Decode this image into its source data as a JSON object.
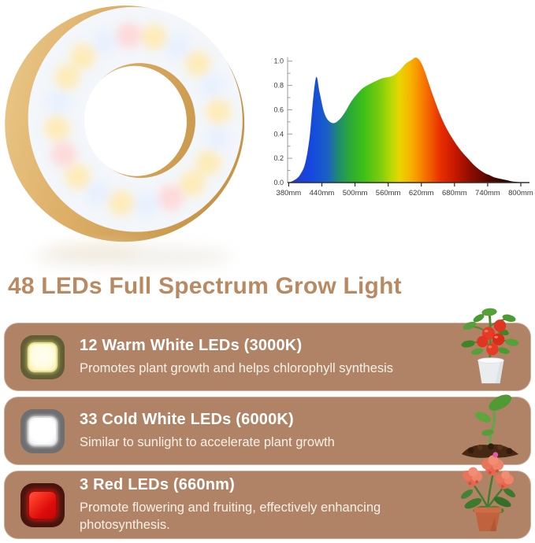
{
  "title": "48 LEDs Full Spectrum Grow Light",
  "title_color": "#b98a62",
  "card_color": "#b08366",
  "heading_color": "#ffffff",
  "description_color": "#f8f1e7",
  "ring_light": {
    "name": "wooden-ring-grow-light",
    "wood_color": "#ddaf67",
    "diffuser_color": "#f3f6fa",
    "led_glow_colors": {
      "warm": "#ffeab0",
      "cold": "#e8f1ff",
      "red": "#ffd6d6"
    }
  },
  "chart_data": {
    "type": "area",
    "title": "",
    "xlabel": "",
    "ylabel": "",
    "grid": false,
    "legend": false,
    "xlim": [
      378,
      810
    ],
    "ylim": [
      0,
      1.05
    ],
    "x_ticks": [
      "380mm",
      "440mm",
      "500mm",
      "560mm",
      "620mm",
      "680mm",
      "740mm",
      "800mm"
    ],
    "x_tick_values": [
      380,
      440,
      500,
      560,
      620,
      680,
      740,
      800
    ],
    "y_ticks": [
      "0.0",
      "0.2",
      "0.4",
      "0.6",
      "0.8",
      "1.0"
    ],
    "y_tick_values": [
      0,
      0.2,
      0.4,
      0.6,
      0.8,
      1.0
    ],
    "y_minor_ticks": [
      0.1,
      0.3,
      0.5,
      0.7,
      0.9
    ],
    "x_axis_color": "#2e2e2e",
    "y_axis_color": "#9b9b9b",
    "tick_label_color": "#3a3a3a",
    "x": [
      380,
      390,
      400,
      410,
      418,
      424,
      430,
      436,
      444,
      452,
      462,
      472,
      482,
      492,
      502,
      512,
      522,
      535,
      550,
      562,
      572,
      582,
      592,
      602,
      610,
      618,
      626,
      634,
      644,
      654,
      664,
      674,
      684,
      694,
      704,
      714,
      724,
      734,
      744,
      754,
      764,
      774,
      784,
      794,
      805
    ],
    "y": [
      0,
      0.02,
      0.06,
      0.16,
      0.38,
      0.68,
      0.87,
      0.74,
      0.58,
      0.51,
      0.49,
      0.52,
      0.58,
      0.66,
      0.72,
      0.77,
      0.8,
      0.83,
      0.86,
      0.87,
      0.89,
      0.93,
      0.98,
      1.01,
      1.03,
      1.0,
      0.92,
      0.81,
      0.68,
      0.56,
      0.46,
      0.38,
      0.31,
      0.25,
      0.2,
      0.15,
      0.11,
      0.08,
      0.06,
      0.04,
      0.03,
      0.02,
      0.01,
      0.005,
      0
    ],
    "gradient_stops": [
      {
        "wl": 380,
        "color": "#2b37c0"
      },
      {
        "wl": 420,
        "color": "#1447e0"
      },
      {
        "wl": 450,
        "color": "#1a60c4"
      },
      {
        "wl": 470,
        "color": "#1f8c6e"
      },
      {
        "wl": 490,
        "color": "#2aa838"
      },
      {
        "wl": 515,
        "color": "#3dbf17"
      },
      {
        "wl": 545,
        "color": "#7ccc0d"
      },
      {
        "wl": 565,
        "color": "#b8d806"
      },
      {
        "wl": 580,
        "color": "#e6d600"
      },
      {
        "wl": 598,
        "color": "#f6b700"
      },
      {
        "wl": 615,
        "color": "#f89000"
      },
      {
        "wl": 635,
        "color": "#f35f00"
      },
      {
        "wl": 655,
        "color": "#e72e00"
      },
      {
        "wl": 680,
        "color": "#c81800"
      },
      {
        "wl": 710,
        "color": "#8c0c00"
      },
      {
        "wl": 745,
        "color": "#4e0600"
      },
      {
        "wl": 780,
        "color": "#1e0300"
      },
      {
        "wl": 810,
        "color": "#0a0100"
      }
    ]
  },
  "features": [
    {
      "heading": "12 Warm White LEDs (3000K)",
      "description": "Promotes plant growth and helps chlorophyll synthesis",
      "icon": "warm-white-led-icon",
      "icon_colors": {
        "border": "#615e35",
        "fill": "#fffce0",
        "ring": "#ece28c"
      },
      "plant_image": "tomato-plant"
    },
    {
      "heading": "33 Cold White LEDs (6000K)",
      "description": "Similar to sunlight to accelerate plant growth",
      "icon": "cold-white-led-icon",
      "icon_colors": {
        "border": "#6f6f71",
        "fill": "#ffffff",
        "ring": "#d6d6d8"
      },
      "plant_image": "seedling"
    },
    {
      "heading": "3 Red LEDs (660nm)",
      "description": "Promote flowering and fruiting, effectively enhancing photosynthesis.",
      "icon": "red-led-icon",
      "icon_colors": {
        "border": "#47150f",
        "fill": "#e40f0f",
        "highlight": "#ff5140"
      },
      "plant_image": "flowering-plant"
    }
  ]
}
